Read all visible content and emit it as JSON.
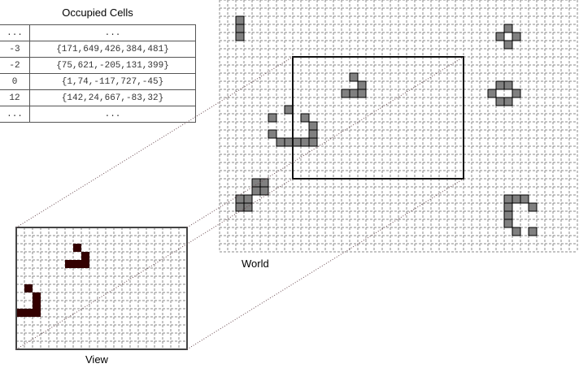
{
  "table": {
    "title": "Occupied Cells",
    "rows": [
      {
        "key": "...",
        "value": "..."
      },
      {
        "key": "-3",
        "value": "{171,649,426,384,481}"
      },
      {
        "key": "-2",
        "value": "{75,621,-205,131,399}"
      },
      {
        "key": "0",
        "value": "{1,74,-117,727,-45}"
      },
      {
        "key": "12",
        "value": "{142,24,667,-83,32}"
      },
      {
        "key": "...",
        "value": "..."
      }
    ]
  },
  "world": {
    "label": "World",
    "cell_color": "#808080",
    "live_cells": [
      [
        2,
        2
      ],
      [
        2,
        3
      ],
      [
        2,
        4
      ],
      [
        35,
        3
      ],
      [
        34,
        4
      ],
      [
        36,
        4
      ],
      [
        35,
        5
      ],
      [
        16,
        9
      ],
      [
        17,
        10
      ],
      [
        15,
        11
      ],
      [
        16,
        11
      ],
      [
        17,
        11
      ],
      [
        34,
        10
      ],
      [
        35,
        10
      ],
      [
        33,
        11
      ],
      [
        36,
        11
      ],
      [
        34,
        12
      ],
      [
        35,
        12
      ],
      [
        8,
        13
      ],
      [
        6,
        14
      ],
      [
        10,
        14
      ],
      [
        11,
        15
      ],
      [
        6,
        16
      ],
      [
        11,
        16
      ],
      [
        7,
        17
      ],
      [
        8,
        17
      ],
      [
        9,
        17
      ],
      [
        10,
        17
      ],
      [
        11,
        17
      ],
      [
        4,
        22
      ],
      [
        5,
        22
      ],
      [
        4,
        23
      ],
      [
        5,
        23
      ],
      [
        2,
        24
      ],
      [
        3,
        24
      ],
      [
        2,
        25
      ],
      [
        3,
        25
      ],
      [
        35,
        24
      ],
      [
        36,
        24
      ],
      [
        37,
        24
      ],
      [
        35,
        25
      ],
      [
        38,
        25
      ],
      [
        35,
        26
      ],
      [
        35,
        27
      ],
      [
        36,
        28
      ],
      [
        38,
        28
      ]
    ],
    "viewport": {
      "col": 9,
      "row": 7,
      "cols": 21,
      "rows": 15
    }
  },
  "view": {
    "label": "View",
    "cell_color": "#330000"
  }
}
